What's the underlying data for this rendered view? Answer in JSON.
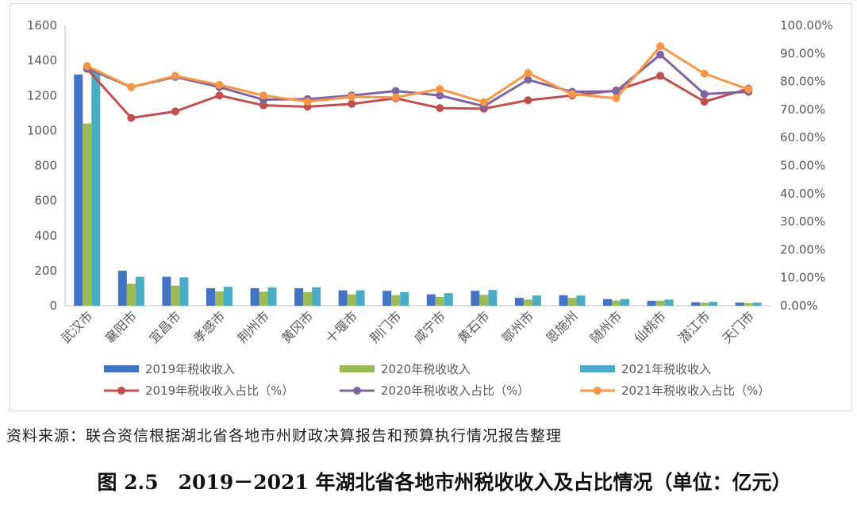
{
  "chart_data": {
    "type": "bar+line",
    "categories": [
      "武汉市",
      "襄阳市",
      "宜昌市",
      "孝感市",
      "荆州市",
      "黄冈市",
      "十堰市",
      "荆门市",
      "咸宁市",
      "黄石市",
      "鄂州市",
      "恩施州",
      "随州市",
      "仙桃市",
      "潜江市",
      "天门市"
    ],
    "y_left": {
      "ylim": [
        0,
        1600
      ],
      "ticks": [
        "0",
        "200",
        "400",
        "600",
        "800",
        "1000",
        "1200",
        "1400",
        "1600"
      ]
    },
    "y_right": {
      "ylim": [
        0,
        100
      ],
      "ticks": [
        "0.00%",
        "10.00%",
        "20.00%",
        "30.00%",
        "40.00%",
        "50.00%",
        "60.00%",
        "70.00%",
        "80.00%",
        "90.00%",
        "100.00%"
      ]
    },
    "bar_series": [
      {
        "name": "2019年税收收入",
        "color": "#4472C4",
        "values": [
          1320,
          200,
          165,
          100,
          100,
          100,
          88,
          85,
          65,
          85,
          45,
          60,
          38,
          28,
          20,
          18
        ]
      },
      {
        "name": "2020年税收收入",
        "color": "#9BBB59",
        "values": [
          1040,
          125,
          115,
          82,
          80,
          78,
          65,
          60,
          50,
          62,
          35,
          45,
          30,
          28,
          18,
          15
        ]
      },
      {
        "name": "2021年税收收入",
        "color": "#4BACC6",
        "values": [
          1345,
          165,
          162,
          108,
          105,
          105,
          88,
          78,
          72,
          90,
          58,
          58,
          38,
          35,
          22,
          18
        ]
      }
    ],
    "line_series": [
      {
        "name": "2019年税收收入占比（%）",
        "color": "#C0504D",
        "values": [
          84.5,
          67.0,
          69.3,
          75.0,
          71.5,
          71.0,
          72.0,
          74.0,
          70.5,
          70.3,
          73.3,
          75.0,
          76.8,
          82.0,
          72.8,
          77.4
        ]
      },
      {
        "name": "2020年税收收入占比（%）",
        "color": "#8064A2",
        "values": [
          84.7,
          78.0,
          81.6,
          78.0,
          73.5,
          73.7,
          75.0,
          76.6,
          75.0,
          71.2,
          80.6,
          76.3,
          76.5,
          89.6,
          75.5,
          76.3
        ]
      },
      {
        "name": "2021年税收收入占比（%）",
        "color": "#F79646",
        "values": [
          85.5,
          78.0,
          82.0,
          78.8,
          75.0,
          72.8,
          74.5,
          74.3,
          77.3,
          72.6,
          83.0,
          75.5,
          74.0,
          92.6,
          82.8,
          77.2
        ]
      }
    ]
  },
  "source_note": "资料来源：联合资信根据湖北省各地市州财政决算报告和预算执行情况报告整理",
  "caption": "图 2.5　2019－2021 年湖北省各地市州税收收入及占比情况（单位：亿元）"
}
